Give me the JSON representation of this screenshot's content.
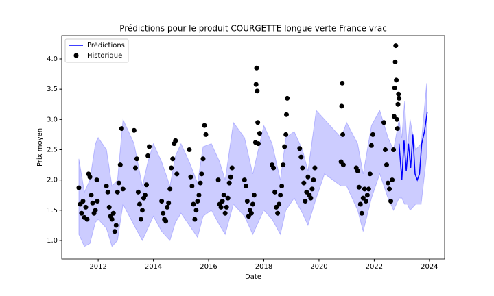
{
  "chart_data": {
    "type": "line",
    "title": "Prédictions pour le produit COURGETTE longue verte France vrac",
    "xlabel": "Date",
    "ylabel": "Prix moyen",
    "xlim": [
      2010.68,
      2024.55
    ],
    "xticks": [
      2012,
      2014,
      2016,
      2018,
      2020,
      2022,
      2024
    ],
    "ylim": [
      0.694,
      4.385
    ],
    "yticks": [
      {
        "value": 1.0,
        "label": "1.0"
      },
      {
        "value": 1.5,
        "label": "1.5"
      },
      {
        "value": 2.0,
        "label": "2.0"
      },
      {
        "value": 2.5,
        "label": "2.5"
      },
      {
        "value": 3.0,
        "label": "3.0"
      },
      {
        "value": 3.5,
        "label": "3.5"
      },
      {
        "value": 4.0,
        "label": "4.0"
      }
    ],
    "legend": "upper left",
    "band": {
      "color": "#0000ff",
      "x": [
        2011.3,
        2011.5,
        2011.7,
        2011.9,
        2012.0,
        2012.3,
        2012.5,
        2012.7,
        2012.9,
        2013.3,
        2013.6,
        2013.8,
        2014.0,
        2014.3,
        2014.6,
        2014.8,
        2015.0,
        2015.3,
        2015.6,
        2015.8,
        2016.1,
        2016.4,
        2016.6,
        2016.9,
        2017.3,
        2017.6,
        2017.8,
        2018.0,
        2018.3,
        2018.6,
        2018.8,
        2019.1,
        2019.4,
        2019.6,
        2019.9,
        2020.2,
        2020.8,
        2021.0,
        2021.4,
        2021.6,
        2021.9,
        2022.2,
        2022.5,
        2022.7,
        2022.9,
        2023.0,
        2023.1,
        2023.2,
        2023.3,
        2023.5,
        2023.7,
        2023.9
      ],
      "upper": [
        2.35,
        1.8,
        2.0,
        2.6,
        2.7,
        2.5,
        1.9,
        2.0,
        3.0,
        2.6,
        1.9,
        2.3,
        2.6,
        2.3,
        1.9,
        2.4,
        2.6,
        2.3,
        1.95,
        2.55,
        2.6,
        2.3,
        2.0,
        2.95,
        2.7,
        2.1,
        2.5,
        2.9,
        2.6,
        2.0,
        2.7,
        2.8,
        2.5,
        2.15,
        3.15,
        3.0,
        2.7,
        2.95,
        2.6,
        2.1,
        2.9,
        3.15,
        2.7,
        2.5,
        3.0,
        2.7,
        3.3,
        2.5,
        3.0,
        2.5,
        2.6,
        3.6
      ],
      "lower": [
        1.1,
        0.9,
        0.95,
        1.3,
        1.35,
        1.2,
        0.9,
        1.0,
        1.6,
        1.25,
        1.0,
        1.2,
        1.4,
        1.15,
        1.0,
        1.3,
        1.45,
        1.25,
        1.05,
        1.4,
        1.5,
        1.25,
        1.1,
        1.6,
        1.4,
        1.1,
        1.3,
        1.5,
        1.35,
        1.1,
        1.5,
        1.7,
        1.45,
        1.25,
        1.7,
        2.1,
        1.9,
        1.9,
        1.5,
        1.15,
        1.7,
        2.1,
        1.7,
        1.5,
        1.7,
        1.7,
        1.6,
        1.6,
        1.5,
        1.6,
        1.6,
        2.4
      ]
    },
    "series": [
      {
        "name": "Prédictions",
        "type": "line",
        "color": "#0000ff",
        "x": [
          2022.9,
          2023.0,
          2023.08,
          2023.16,
          2023.24,
          2023.32,
          2023.4,
          2023.48,
          2023.56,
          2023.64,
          2023.72,
          2023.82,
          2023.92
        ],
        "values": [
          2.6,
          2.0,
          2.65,
          2.15,
          2.6,
          2.2,
          2.75,
          2.1,
          2.0,
          2.1,
          2.6,
          2.8,
          3.12
        ]
      },
      {
        "name": "Historique",
        "type": "scatter",
        "color": "#000000",
        "x": [
          2011.3,
          2011.35,
          2011.4,
          2011.45,
          2011.5,
          2011.55,
          2011.6,
          2011.65,
          2011.7,
          2011.75,
          2011.8,
          2011.85,
          2011.9,
          2011.95,
          2011.97,
          2012.3,
          2012.35,
          2012.4,
          2012.45,
          2012.5,
          2012.55,
          2012.6,
          2012.65,
          2012.7,
          2012.75,
          2012.8,
          2012.85,
          2012.9,
          2013.3,
          2013.35,
          2013.4,
          2013.45,
          2013.5,
          2013.55,
          2013.6,
          2013.65,
          2013.7,
          2013.75,
          2013.8,
          2013.85,
          2014.3,
          2014.35,
          2014.4,
          2014.45,
          2014.5,
          2014.55,
          2014.6,
          2014.65,
          2014.7,
          2014.75,
          2014.8,
          2014.85,
          2015.3,
          2015.35,
          2015.4,
          2015.45,
          2015.5,
          2015.55,
          2015.6,
          2015.65,
          2015.7,
          2015.75,
          2015.8,
          2015.85,
          2015.9,
          2016.35,
          2016.4,
          2016.45,
          2016.5,
          2016.55,
          2016.6,
          2016.65,
          2016.7,
          2016.75,
          2016.8,
          2016.85,
          2017.3,
          2017.35,
          2017.4,
          2017.45,
          2017.5,
          2017.55,
          2017.6,
          2017.65,
          2017.7,
          2017.72,
          2017.74,
          2017.76,
          2017.78,
          2017.8,
          2017.85,
          2018.3,
          2018.35,
          2018.4,
          2018.45,
          2018.5,
          2018.55,
          2018.6,
          2018.65,
          2018.7,
          2018.75,
          2018.8,
          2018.82,
          2018.85,
          2019.3,
          2019.35,
          2019.4,
          2019.45,
          2019.5,
          2019.55,
          2019.6,
          2019.65,
          2019.7,
          2019.75,
          2019.8,
          2019.85,
          2020.8,
          2020.82,
          2020.84,
          2020.86,
          2020.88,
          2021.35,
          2021.4,
          2021.45,
          2021.5,
          2021.55,
          2021.6,
          2021.65,
          2021.7,
          2021.75,
          2021.8,
          2021.85,
          2021.9,
          2021.95,
          2022.35,
          2022.4,
          2022.45,
          2022.5,
          2022.55,
          2022.6,
          2022.65,
          2022.7,
          2022.72,
          2022.74,
          2022.76,
          2022.78,
          2022.8,
          2022.82,
          2022.84,
          2022.86,
          2022.88,
          2022.9
        ],
        "values": [
          1.87,
          1.6,
          1.45,
          1.65,
          1.38,
          1.55,
          1.35,
          2.1,
          2.05,
          1.75,
          1.62,
          1.45,
          1.5,
          2.0,
          1.65,
          1.9,
          1.8,
          1.55,
          1.4,
          1.35,
          1.45,
          1.15,
          1.25,
          1.8,
          1.95,
          2.25,
          2.85,
          1.85,
          2.82,
          2.2,
          2.35,
          1.8,
          1.6,
          1.35,
          1.5,
          1.7,
          1.75,
          1.92,
          2.4,
          2.55,
          1.65,
          1.45,
          1.35,
          1.32,
          1.55,
          1.62,
          1.85,
          2.2,
          2.35,
          2.6,
          2.65,
          2.1,
          2.5,
          2.05,
          1.9,
          1.6,
          1.35,
          1.5,
          1.65,
          1.75,
          1.95,
          2.1,
          2.35,
          2.9,
          2.75,
          2.0,
          1.6,
          1.55,
          1.65,
          1.75,
          1.45,
          1.55,
          1.7,
          1.95,
          2.05,
          2.2,
          2.0,
          1.9,
          1.65,
          1.4,
          1.5,
          1.45,
          1.6,
          1.75,
          2.62,
          3.58,
          3.85,
          3.47,
          2.95,
          2.6,
          2.77,
          2.25,
          2.2,
          1.8,
          1.55,
          1.45,
          1.6,
          1.75,
          1.9,
          2.25,
          2.55,
          2.75,
          3.08,
          3.35,
          2.52,
          2.38,
          2.2,
          1.95,
          1.65,
          1.8,
          2.05,
          1.75,
          1.7,
          1.85,
          2.0,
          2.2,
          2.3,
          3.22,
          3.6,
          2.75,
          2.25,
          2.2,
          2.15,
          1.88,
          1.6,
          1.45,
          1.7,
          1.85,
          1.65,
          1.75,
          1.85,
          2.1,
          2.57,
          2.75,
          2.95,
          2.5,
          2.25,
          1.95,
          1.85,
          1.65,
          2.0,
          2.5,
          3.05,
          3.52,
          3.95,
          4.22,
          3.65,
          3.0,
          2.85,
          3.25,
          3.42,
          3.35
        ]
      }
    ]
  }
}
